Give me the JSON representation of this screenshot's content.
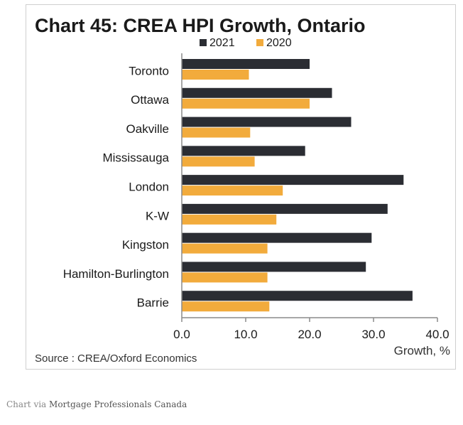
{
  "chart_data": {
    "type": "bar",
    "orientation": "horizontal",
    "title": "Chart 45: CREA HPI Growth, Ontario",
    "xlabel": "Growth, %",
    "ylabel": "",
    "categories": [
      "Toronto",
      "Ottawa",
      "Oakville",
      "Mississauga",
      "London",
      "K-W",
      "Kingston",
      "Hamilton-Burlington",
      "Barrie"
    ],
    "series": [
      {
        "name": "2021",
        "color": "#2b2d33",
        "values": [
          20.0,
          23.5,
          26.5,
          19.3,
          34.7,
          32.2,
          29.7,
          28.8,
          36.1
        ]
      },
      {
        "name": "2020",
        "color": "#f2ab3c",
        "values": [
          10.5,
          20.0,
          10.7,
          11.4,
          15.8,
          14.8,
          13.4,
          13.4,
          13.7
        ]
      }
    ],
    "xlim": [
      0,
      40
    ],
    "xticks": [
      "0.0",
      "10.0",
      "20.0",
      "30.0",
      "40.0"
    ],
    "grid": false,
    "legend_position": "top-center",
    "source": "Source : CREA/Oxford Economics"
  },
  "caption": {
    "prefix": "Chart via",
    "link_text": "Mortgage Professionals Canada"
  }
}
